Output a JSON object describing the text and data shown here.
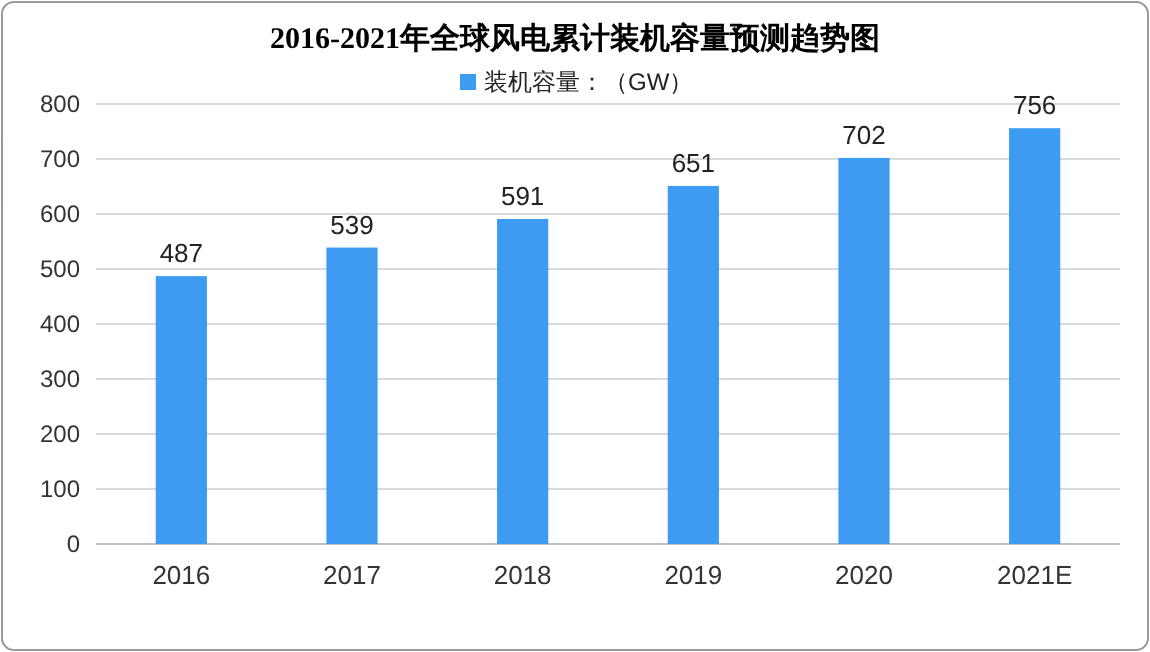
{
  "chart_data": {
    "type": "bar",
    "title": "2016-2021年全球风电累计装机容量预测趋势图",
    "categories": [
      "2016",
      "2017",
      "2018",
      "2019",
      "2020",
      "2021E"
    ],
    "series": [
      {
        "name": "装机容量：（GW）",
        "color": "#3d9bf2",
        "values": [
          487,
          539,
          591,
          651,
          702,
          756
        ]
      }
    ],
    "ylim": [
      0,
      800
    ],
    "yticks": [
      0,
      100,
      200,
      300,
      400,
      500,
      600,
      700,
      800
    ],
    "grid": "y",
    "legend": "top",
    "data_labels": true
  }
}
